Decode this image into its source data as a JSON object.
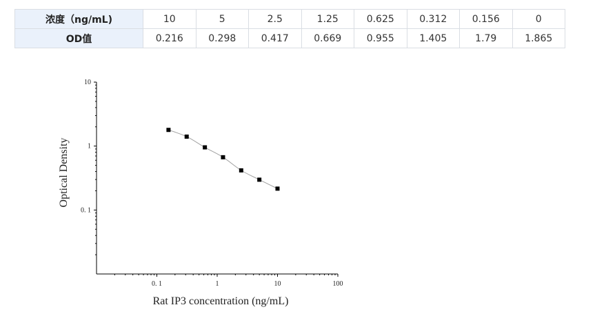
{
  "table": {
    "rows": [
      {
        "label": "浓度（ng/mL)",
        "values": [
          "10",
          "5",
          "2.5",
          "1.25",
          "0.625",
          "0.312",
          "0.156",
          "0"
        ]
      },
      {
        "label": "OD值",
        "values": [
          "0.216",
          "0.298",
          "0.417",
          "0.669",
          "0.955",
          "1.405",
          "1.79",
          "1.865"
        ]
      }
    ]
  },
  "chart_data": {
    "type": "scatter",
    "xlabel": "Rat IP3 concentration (ng/mL)",
    "ylabel": "Optical Density",
    "x_scale": "log",
    "y_scale": "log",
    "xlim": [
      0.01,
      100
    ],
    "ylim": [
      0.01,
      10
    ],
    "x_ticks": [
      {
        "value": 0.1,
        "label": "0. 1"
      },
      {
        "value": 1,
        "label": "1"
      },
      {
        "value": 10,
        "label": "10"
      },
      {
        "value": 100,
        "label": "100"
      }
    ],
    "y_ticks": [
      {
        "value": 0.1,
        "label": "0. 1"
      },
      {
        "value": 1,
        "label": "1"
      },
      {
        "value": 10,
        "label": "10"
      }
    ],
    "grid": false,
    "points": [
      {
        "x": 0.156,
        "y": 1.79
      },
      {
        "x": 0.312,
        "y": 1.405
      },
      {
        "x": 0.625,
        "y": 0.955
      },
      {
        "x": 1.25,
        "y": 0.669
      },
      {
        "x": 2.5,
        "y": 0.417
      },
      {
        "x": 5,
        "y": 0.298
      },
      {
        "x": 10,
        "y": 0.216
      }
    ],
    "fit_curve": true,
    "marker_color": "#000000",
    "curve_color": "#a0a0a0"
  }
}
